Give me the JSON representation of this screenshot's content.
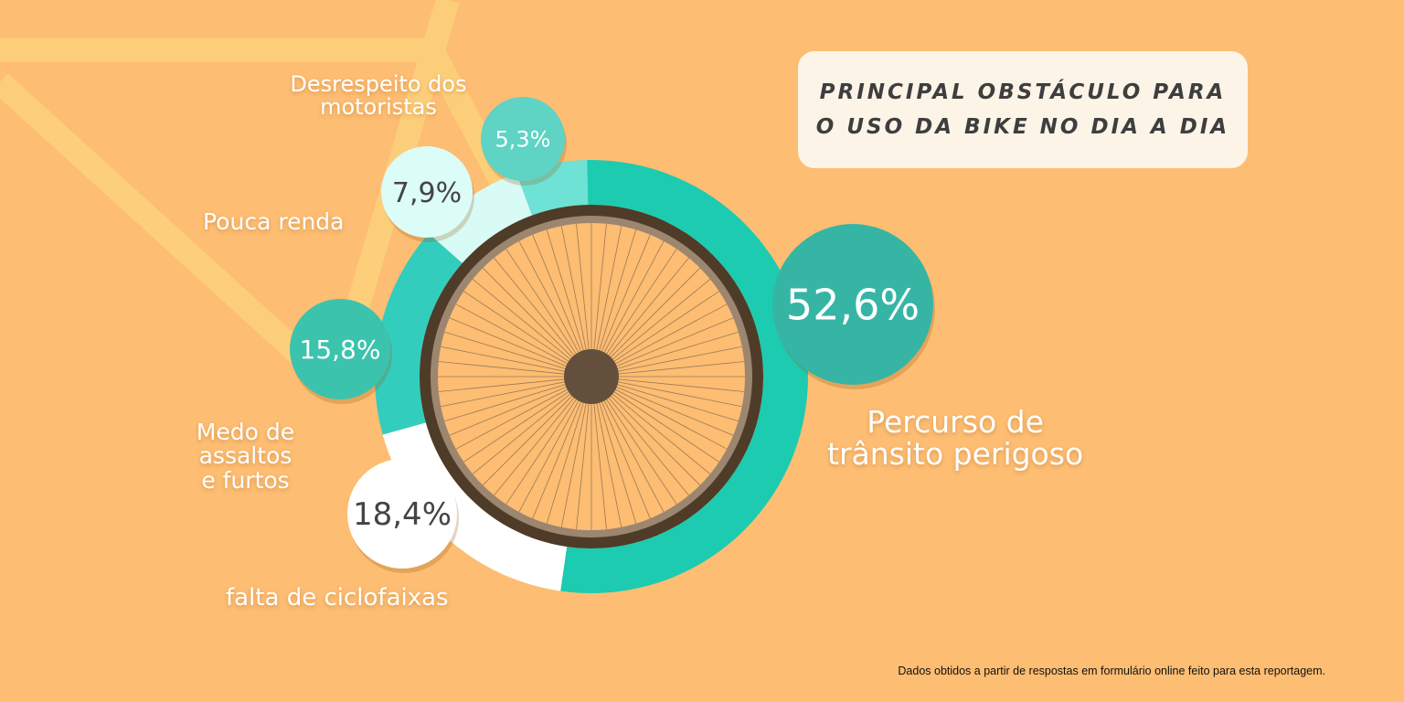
{
  "title": {
    "line1": "PRINCIPAL OBSTÁCULO PARA",
    "line2": "O USO DA BIKE NO DIA A DIA"
  },
  "footer": "Dados obtidos a partir de respostas em formulário online feito para esta reportagem.",
  "chart_data": {
    "type": "pie",
    "title": "Principal obstáculo para o uso da bike no dia a dia",
    "slices": [
      {
        "label": "Percurso de trânsito perigoso",
        "value": 52.6,
        "display": "52,6%",
        "color": "#1dcbb1",
        "bubble": "#36b5a5",
        "text": "#ffffff"
      },
      {
        "label": "Falta de ciclofaixas",
        "value": 18.4,
        "display": "18,4%",
        "color": "#ffffff",
        "bubble": "#ffffff",
        "text": "#444444"
      },
      {
        "label": "Medo de assaltos e furtos",
        "value": 15.8,
        "display": "15,8%",
        "color": "#33cdbd",
        "bubble": "#3cc3ae",
        "text": "#ffffff"
      },
      {
        "label": "Pouca renda",
        "value": 7.9,
        "display": "7,9%",
        "color": "#d8fbf6",
        "bubble": "#dcfcf8",
        "text": "#444444"
      },
      {
        "label": "Desrespeito dos motoristas",
        "value": 5.3,
        "display": "5,3%",
        "color": "#6ee2d4",
        "bubble": "#5fd3c4",
        "text": "#ffffff"
      }
    ],
    "labels_display": {
      "s0": [
        "Percurso de",
        "trânsito perigoso"
      ],
      "s1": [
        "falta de ciclofaixas"
      ],
      "s2": [
        "Medo de",
        "assaltos",
        "e furtos"
      ],
      "s3": [
        "Pouca renda"
      ],
      "s4": [
        "Desrespeito dos",
        "motoristas"
      ]
    }
  }
}
